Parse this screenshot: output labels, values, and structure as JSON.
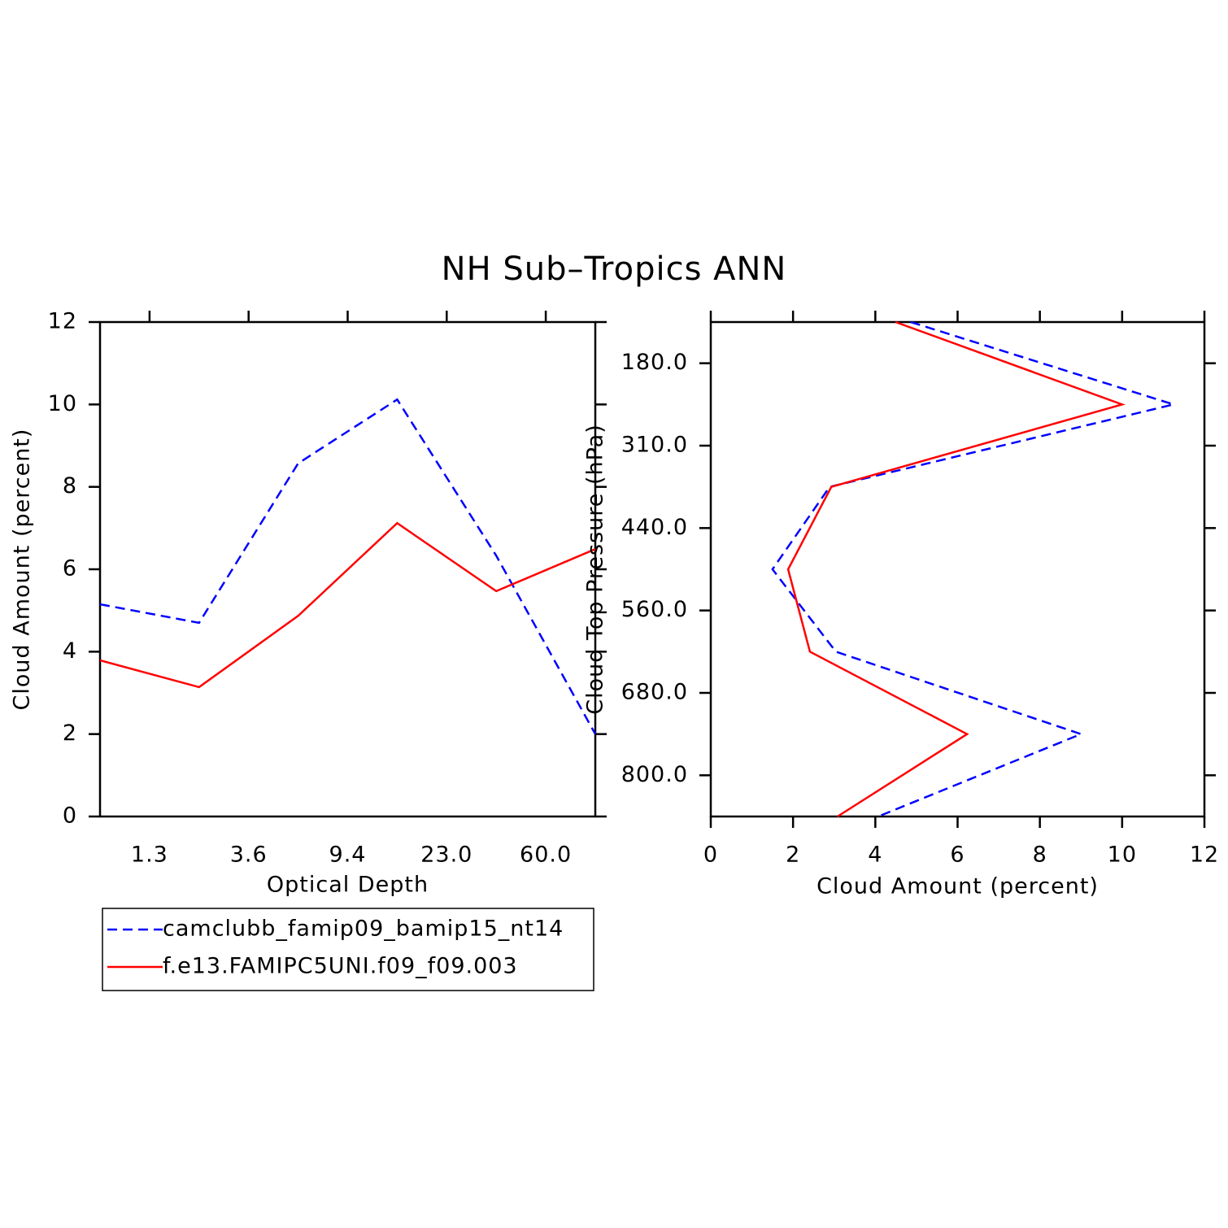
{
  "title": "NH Sub–Tropics ANN",
  "chart_data": [
    {
      "type": "line",
      "category_axis": "x",
      "categories": [
        null,
        null,
        null,
        null,
        null,
        null
      ],
      "xtick_labels": [
        "1.3",
        "3.6",
        "9.4",
        "23.0",
        "60.0"
      ],
      "xlabel": "Optical Depth",
      "ylabel": "Cloud Amount (percent)",
      "ylim": [
        0,
        12
      ],
      "yticks": [
        0,
        2,
        4,
        6,
        8,
        10,
        12
      ],
      "series": [
        {
          "name": "camclubb_famip09_bamip15_nt14",
          "color": "#0000ff",
          "dash": true,
          "values": [
            5.15,
            4.7,
            8.57,
            10.12,
            6.33,
            2.0
          ]
        },
        {
          "name": "f.e13.FAMIPC5UNI.f09_f09.003",
          "color": "#ff0000",
          "dash": false,
          "values": [
            3.79,
            3.14,
            4.87,
            7.12,
            5.47,
            6.49
          ]
        }
      ]
    },
    {
      "type": "line",
      "category_axis": "y",
      "categories": [
        null,
        null,
        null,
        null,
        null,
        null,
        null
      ],
      "ytick_labels": [
        "180.0",
        "310.0",
        "440.0",
        "560.0",
        "680.0",
        "800.0"
      ],
      "xlabel": "Cloud Amount (percent)",
      "ylabel": "Cloud Top Pressure (hPa)",
      "xlim": [
        0,
        12
      ],
      "xticks": [
        0,
        2,
        4,
        6,
        8,
        10,
        12
      ],
      "series": [
        {
          "name": "camclubb_famip09_bamip15_nt14",
          "color": "#0000ff",
          "dash": true,
          "values": [
            4.86,
            11.25,
            2.89,
            1.5,
            3.04,
            9.0,
            4.07
          ]
        },
        {
          "name": "f.e13.FAMIPC5UNI.f09_f09.003",
          "color": "#ff0000",
          "dash": false,
          "values": [
            4.49,
            10.0,
            2.93,
            1.88,
            2.41,
            6.23,
            3.08
          ]
        }
      ]
    }
  ]
}
